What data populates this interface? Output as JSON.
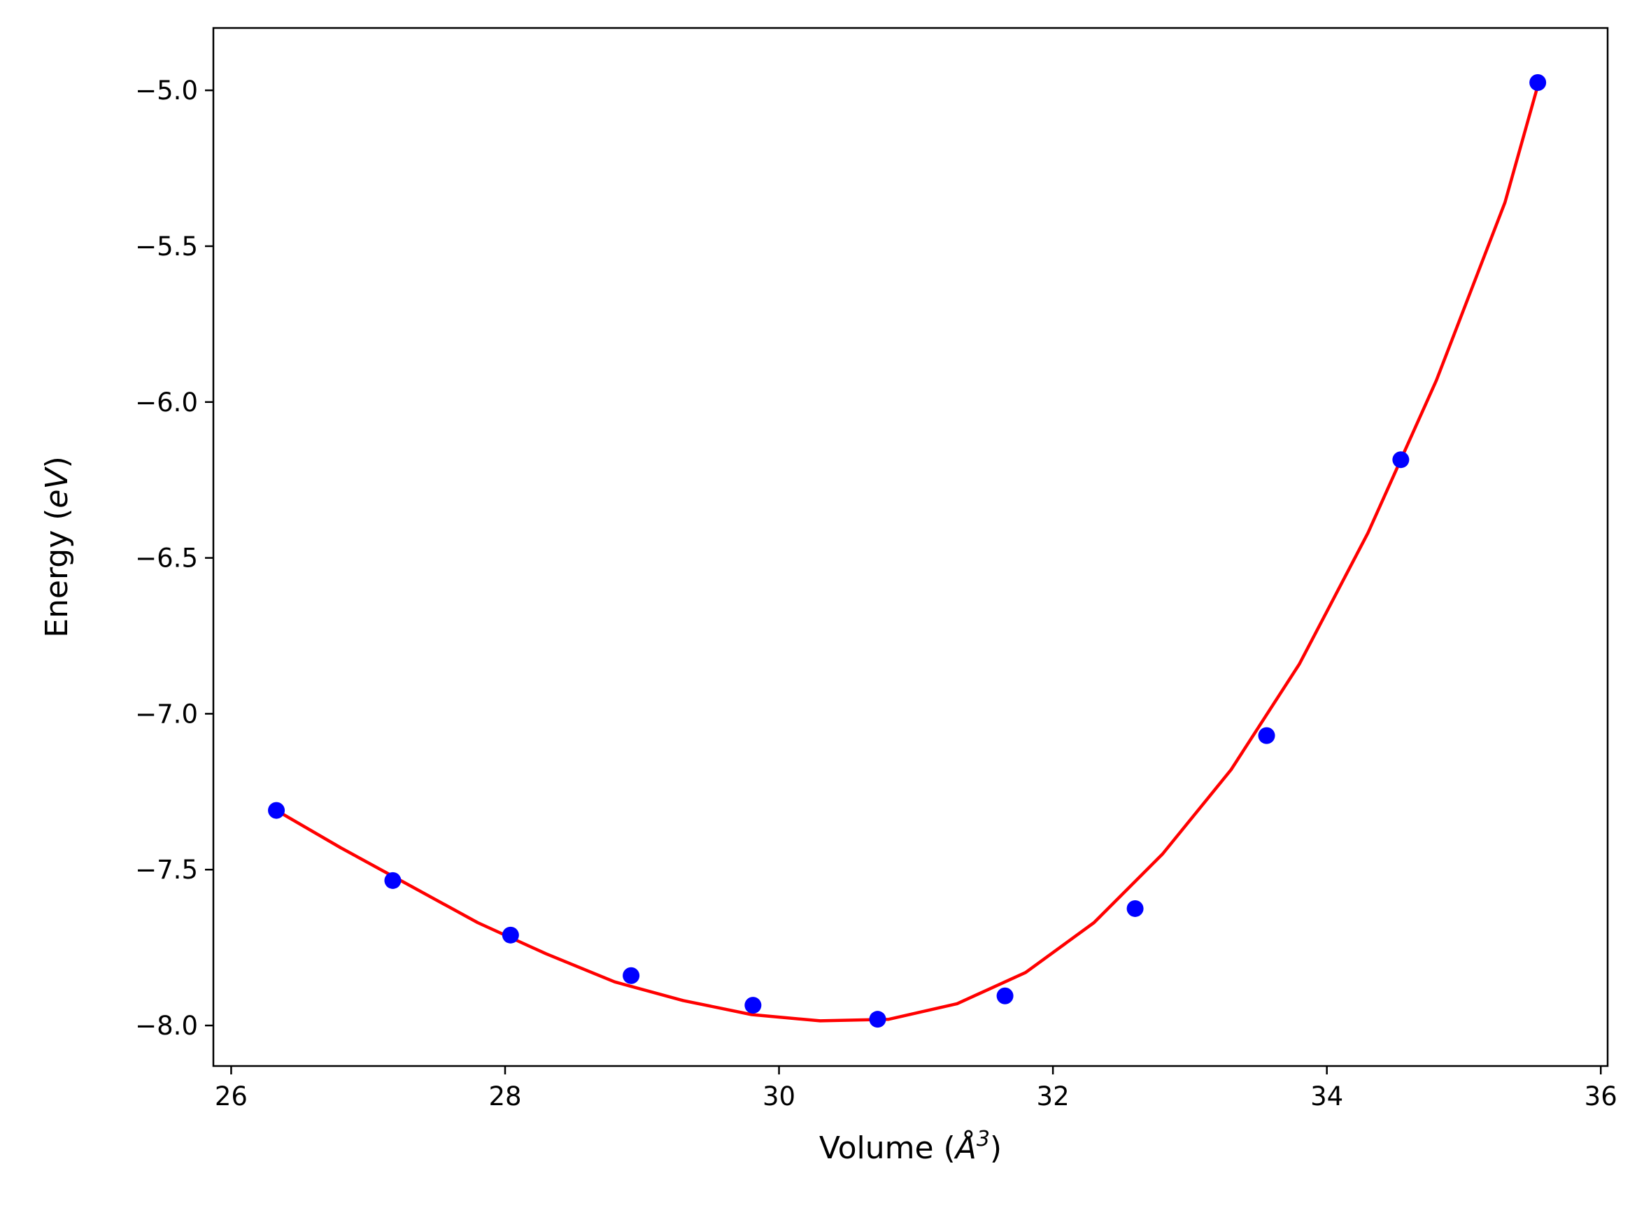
{
  "chart_data": {
    "type": "scatter",
    "title": "",
    "xlabel": {
      "prefix": "Volume (",
      "symbol": "Å",
      "sup": "3",
      "suffix": ")"
    },
    "ylabel": {
      "prefix": "Energy (",
      "unit": "eV",
      "suffix": ")"
    },
    "xlim": [
      25.87,
      36.05
    ],
    "ylim": [
      -8.13,
      -4.8
    ],
    "xticks": [
      26,
      28,
      30,
      32,
      34,
      36
    ],
    "xtick_labels": [
      "26",
      "28",
      "30",
      "32",
      "34",
      "36"
    ],
    "yticks": [
      -5.0,
      -5.5,
      -6.0,
      -6.5,
      -7.0,
      -7.5,
      -8.0
    ],
    "ytick_labels": [
      "−5.0",
      "−5.5",
      "−6.0",
      "−6.5",
      "−7.0",
      "−7.5",
      "−8.0"
    ],
    "grid": false,
    "legend": "none",
    "series": [
      {
        "kind": "points",
        "color": "#0000ff",
        "x": [
          26.33,
          27.18,
          28.04,
          28.92,
          29.81,
          30.72,
          31.65,
          32.6,
          33.56,
          34.54,
          35.54
        ],
        "y": [
          -7.31,
          -7.535,
          -7.71,
          -7.84,
          -7.935,
          -7.98,
          -7.905,
          -7.625,
          -7.07,
          -6.185,
          -4.975
        ]
      },
      {
        "kind": "line",
        "color": "#ff0000",
        "x": [
          26.33,
          26.8,
          27.3,
          27.8,
          28.3,
          28.8,
          29.3,
          29.8,
          30.3,
          30.8,
          31.3,
          31.8,
          32.3,
          32.8,
          33.3,
          33.8,
          34.3,
          34.8,
          35.3,
          35.54
        ],
        "y": [
          -7.31,
          -7.43,
          -7.55,
          -7.67,
          -7.77,
          -7.86,
          -7.92,
          -7.965,
          -7.985,
          -7.98,
          -7.93,
          -7.83,
          -7.67,
          -7.45,
          -7.18,
          -6.84,
          -6.42,
          -5.93,
          -5.36,
          -4.985
        ]
      }
    ]
  }
}
